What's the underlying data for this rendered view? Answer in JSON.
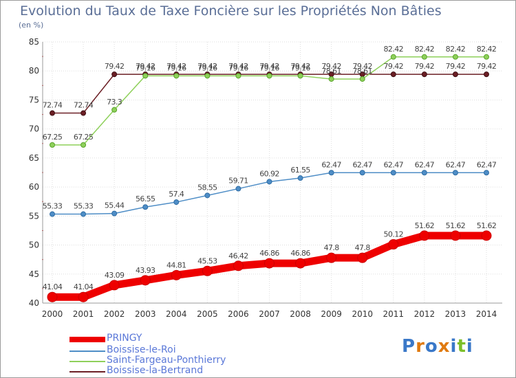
{
  "title": "Evolution du Taux de Taxe Foncière sur les Propriétés Non Bâties",
  "unit_label": "(en %)",
  "logo_text": "Proxiti",
  "chart_data": {
    "type": "line",
    "title": "Evolution du Taux de Taxe Foncière sur les Propriétés Non Bâties",
    "ylabel": "(en %)",
    "xlabel": "",
    "x": [
      "2000",
      "2001",
      "2002",
      "2003",
      "2004",
      "2005",
      "2006",
      "2007",
      "2008",
      "2009",
      "2010",
      "2011",
      "2012",
      "2013",
      "2014"
    ],
    "ylim": [
      40,
      85
    ],
    "yticks": [
      "40",
      "45",
      "50",
      "55",
      "60",
      "65",
      "70",
      "75",
      "80",
      "85"
    ],
    "grid": true,
    "legend_position": "bottom-left",
    "series": [
      {
        "name": "PRINGY",
        "color": "#ee0000",
        "values": [
          41.04,
          41.04,
          43.09,
          43.93,
          44.81,
          45.53,
          46.42,
          46.86,
          46.86,
          47.8,
          47.8,
          50.12,
          51.62,
          51.62,
          51.62
        ],
        "labels": [
          "41.04",
          "41.04",
          "43.09",
          "43.93",
          "44.81",
          "45.53",
          "46.42",
          "46.86",
          "46.86",
          "47.8",
          "47.8",
          "50.12",
          "51.62",
          "51.62",
          "51.62"
        ]
      },
      {
        "name": "Boissise-le-Roi",
        "color": "#4e8dc6",
        "values": [
          55.33,
          55.33,
          55.44,
          56.55,
          57.4,
          58.55,
          59.71,
          60.92,
          61.55,
          62.47,
          62.47,
          62.47,
          62.47,
          62.47,
          62.47
        ],
        "labels": [
          "55.33",
          "55.33",
          "55.44",
          "56.55",
          "57.4",
          "58.55",
          "59.71",
          "60.92",
          "61.55",
          "62.47",
          "62.47",
          "62.47",
          "62.47",
          "62.47",
          "62.47"
        ]
      },
      {
        "name": "Saint-Fargeau-Ponthierry",
        "color": "#8ed05a",
        "values": [
          67.25,
          67.25,
          73.3,
          79.16,
          79.16,
          79.16,
          79.16,
          79.16,
          79.16,
          78.61,
          78.61,
          82.42,
          82.42,
          82.42,
          82.42
        ],
        "labels": [
          "67.25",
          "67.25",
          "73.3",
          "79.16",
          "79.16",
          "79.16",
          "79.16",
          "79.16",
          "79.16",
          "78.61",
          "78.61",
          "82.42",
          "82.42",
          "82.42",
          "82.42"
        ]
      },
      {
        "name": "Boissise-la-Bertrand",
        "color": "#6b1e24",
        "values": [
          72.74,
          72.74,
          79.42,
          79.42,
          79.42,
          79.42,
          79.42,
          79.42,
          79.42,
          79.42,
          79.42,
          79.42,
          79.42,
          79.42,
          79.42
        ],
        "labels": [
          "72.74",
          "72.74",
          "79.42",
          "79.42",
          "79.42",
          "79.42",
          "79.42",
          "79.42",
          "79.42",
          "79.42",
          "79.42",
          "79.42",
          "79.42",
          "79.42",
          "79.42"
        ]
      }
    ]
  }
}
